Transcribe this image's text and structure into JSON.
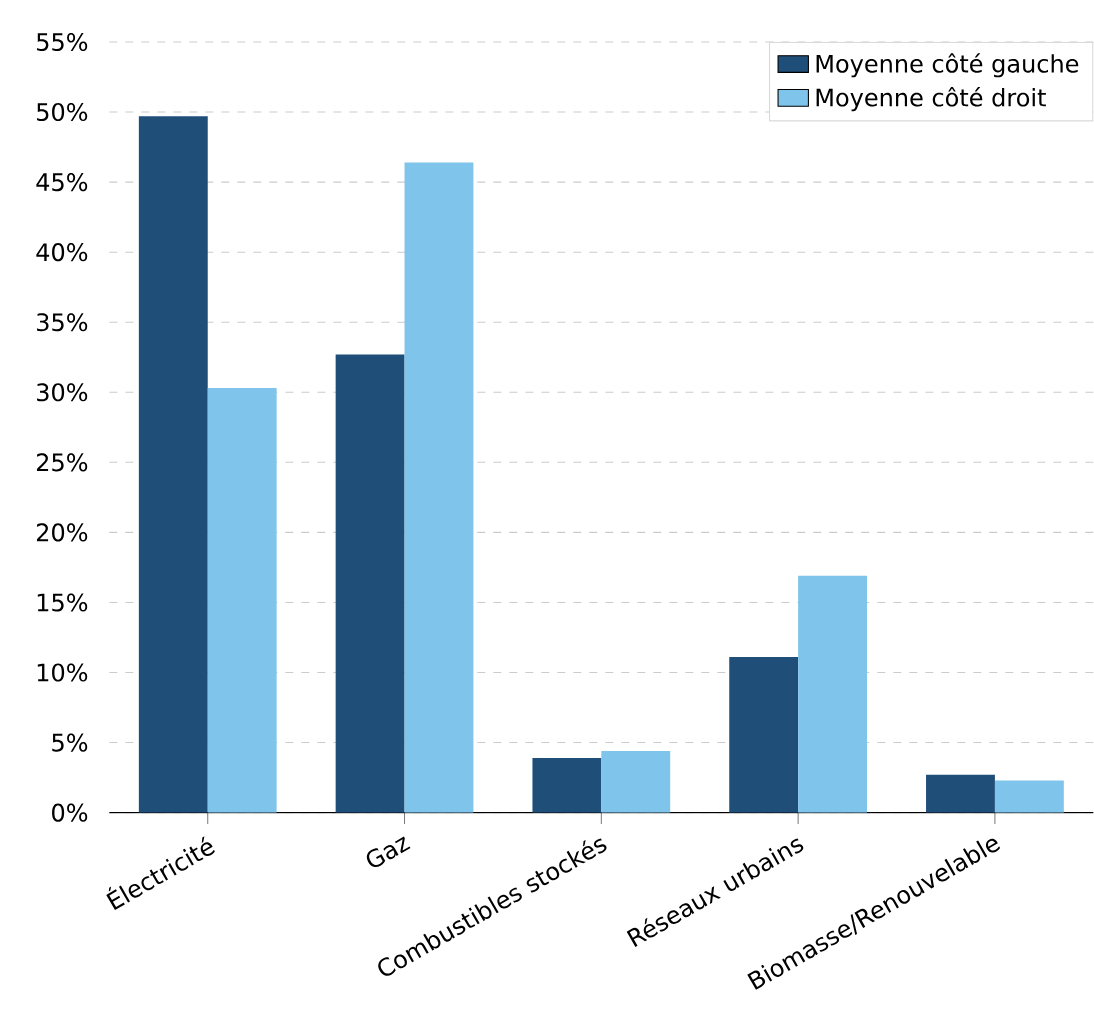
{
  "chart_data": {
    "type": "bar",
    "categories": [
      "Électricité",
      "Gaz",
      "Combustibles stockés",
      "Réseaux urbains",
      "Biomasse/Renouvelable"
    ],
    "series": [
      {
        "name": "Moyenne côté gauche",
        "color": "#1f4e79",
        "values": [
          49.7,
          32.7,
          3.9,
          11.1,
          2.7
        ]
      },
      {
        "name": "Moyenne côté droit",
        "color": "#7fc4ea",
        "values": [
          30.3,
          46.4,
          4.4,
          16.9,
          2.3
        ]
      }
    ],
    "ylim": [
      0,
      55
    ],
    "yticks": [
      {
        "value": 0,
        "label": "0%"
      },
      {
        "value": 5,
        "label": "5%"
      },
      {
        "value": 10,
        "label": "10%"
      },
      {
        "value": 15,
        "label": "15%"
      },
      {
        "value": 20,
        "label": "20%"
      },
      {
        "value": 25,
        "label": "25%"
      },
      {
        "value": 30,
        "label": "30%"
      },
      {
        "value": 35,
        "label": "35%"
      },
      {
        "value": 40,
        "label": "40%"
      },
      {
        "value": 45,
        "label": "45%"
      },
      {
        "value": 50,
        "label": "50%"
      },
      {
        "value": 55,
        "label": "55%"
      }
    ],
    "grid": "y",
    "legend": "top right"
  }
}
